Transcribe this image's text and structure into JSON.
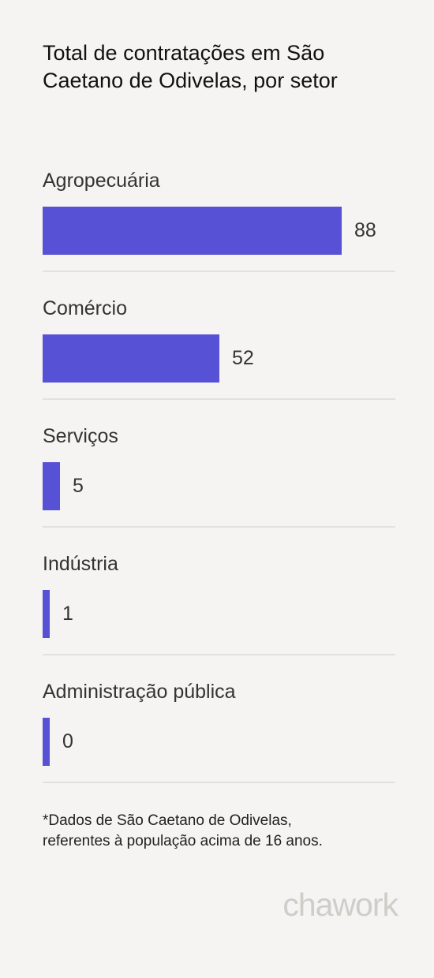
{
  "colors": {
    "background": "#f5f4f2",
    "bar": "#5751d6",
    "divider": "#e2e1de",
    "logo": "#cfcdc8"
  },
  "chart_data": {
    "type": "bar",
    "orientation": "horizontal",
    "title": "Total de contratações em São Caetano de Odivelas, por setor",
    "categories": [
      "Agropecuária",
      "Comércio",
      "Serviços",
      "Indústria",
      "Administração pública"
    ],
    "values": [
      88,
      52,
      5,
      1,
      0
    ],
    "value_labels": [
      "88",
      "52",
      "5",
      "1",
      "0"
    ],
    "xlim": [
      0,
      88
    ],
    "grid": false,
    "legend": "none"
  },
  "footnote": {
    "line1": "*Dados de São Caetano de Odivelas,",
    "line2": "referentes à população acima de 16 anos."
  },
  "brand": {
    "name": "chawork"
  }
}
